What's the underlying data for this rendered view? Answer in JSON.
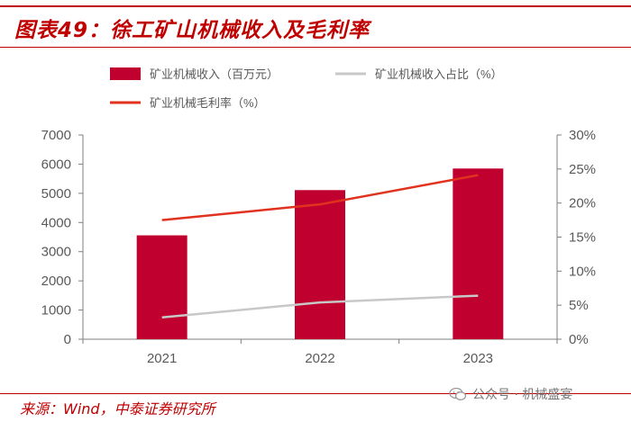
{
  "header": {
    "title": "图表49：徐工矿山机械收入及毛利率"
  },
  "footer": {
    "source": "来源：Wind，中泰证券研究所",
    "watermark": "公众号 · 机械盛宴"
  },
  "colors": {
    "brand": "#c00000",
    "bar": "#c0002f",
    "share_line": "#c8c8c8",
    "margin_line": "#e0321e",
    "axis": "#7f7f7f",
    "text": "#595959"
  },
  "chart_data": {
    "type": "bar",
    "title": "徐工矿山机械收入及毛利率",
    "categories": [
      "2021",
      "2022",
      "2023"
    ],
    "series": [
      {
        "name": "矿业机械收入（百万元）",
        "type": "bar",
        "axis": "left",
        "values": [
          3560,
          5110,
          5850
        ]
      },
      {
        "name": "矿业机械收入占比（%）",
        "type": "line",
        "axis": "right",
        "values": [
          3.2,
          5.4,
          6.4
        ]
      },
      {
        "name": "矿业机械毛利率（%）",
        "type": "line",
        "axis": "right",
        "values": [
          17.5,
          19.8,
          24.1
        ]
      }
    ],
    "y_left": {
      "min": 0,
      "max": 7000,
      "ticks": [
        0,
        1000,
        2000,
        3000,
        4000,
        5000,
        6000,
        7000
      ]
    },
    "y_right": {
      "min": 0,
      "max": 30,
      "ticks": [
        "0%",
        "5%",
        "10%",
        "15%",
        "20%",
        "25%",
        "30%"
      ]
    },
    "legend_position": "top",
    "grid": false
  }
}
